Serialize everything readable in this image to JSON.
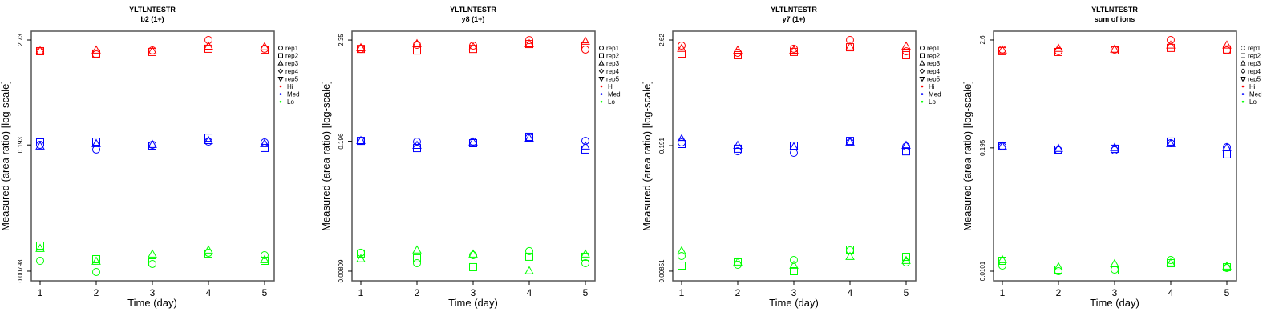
{
  "chart_data": [
    {
      "type": "scatter",
      "title": "YLTLNTESTR",
      "subtitle": "b2 (1+)",
      "xlabel": "Time (day)",
      "ylabel": "Measured (area ratio) [log-scale]",
      "yscale": "log",
      "x": [
        1,
        2,
        3,
        4,
        5
      ],
      "xticks": [
        "1",
        "2",
        "3",
        "4",
        "5"
      ],
      "yticks": [
        2.73,
        0.193,
        0.00798
      ],
      "ytick_labels": [
        "2.73",
        "0.193",
        "0.00798"
      ],
      "ylim": [
        0.00626,
        3.41
      ],
      "series": [
        {
          "group": "Hi",
          "rep": "rep1",
          "values": [
            2.06,
            1.9,
            2.1,
            2.73,
            2.19
          ]
        },
        {
          "group": "Hi",
          "rep": "rep2",
          "values": [
            2.06,
            1.94,
            2.02,
            2.19,
            2.14
          ]
        },
        {
          "group": "Hi",
          "rep": "rep3",
          "values": [
            2.06,
            2.1,
            2.06,
            2.32,
            2.28
          ]
        },
        {
          "group": "Med",
          "rep": "rep1",
          "values": [
            0.194,
            0.172,
            0.194,
            0.21,
            0.206
          ]
        },
        {
          "group": "Med",
          "rep": "rep2",
          "values": [
            0.206,
            0.21,
            0.19,
            0.232,
            0.179
          ]
        },
        {
          "group": "Med",
          "rep": "rep3",
          "values": [
            0.186,
            0.198,
            0.194,
            0.214,
            0.198
          ]
        },
        {
          "group": "Lo",
          "rep": "rep1",
          "values": [
            0.01037,
            0.00782,
            0.00957,
            0.0127,
            0.01195
          ]
        },
        {
          "group": "Lo",
          "rep": "rep2",
          "values": [
            0.01523,
            0.0108,
            0.00996,
            0.01245,
            0.01037
          ]
        },
        {
          "group": "Lo",
          "rep": "rep3",
          "values": [
            0.01405,
            0.01016,
            0.0122,
            0.0135,
            0.01058
          ]
        }
      ]
    },
    {
      "type": "scatter",
      "title": "YLTLNTESTR",
      "subtitle": "y8 (1+)",
      "xlabel": "Time (day)",
      "ylabel": "Measured (area ratio) [log-scale]",
      "yscale": "log",
      "x": [
        1,
        2,
        3,
        4,
        5
      ],
      "xticks": [
        "1",
        "2",
        "3",
        "4",
        "5"
      ],
      "yticks": [
        2.35,
        0.196,
        0.00809
      ],
      "ytick_labels": [
        "2.35",
        "0.196",
        "0.00809"
      ],
      "ylim": [
        0.00639,
        2.92
      ],
      "series": [
        {
          "group": "Hi",
          "rep": "rep1",
          "values": [
            1.89,
            2.09,
            2.05,
            2.35,
            1.86
          ]
        },
        {
          "group": "Hi",
          "rep": "rep2",
          "values": [
            1.89,
            1.82,
            1.89,
            2.13,
            2.01
          ]
        },
        {
          "group": "Hi",
          "rep": "rep3",
          "values": [
            1.93,
            2.13,
            1.97,
            2.13,
            2.26
          ]
        },
        {
          "group": "Med",
          "rep": "rep1",
          "values": [
            0.198,
            0.194,
            0.194,
            0.214,
            0.198
          ]
        },
        {
          "group": "Med",
          "rep": "rep2",
          "values": [
            0.198,
            0.166,
            0.187,
            0.219,
            0.16
          ]
        },
        {
          "group": "Med",
          "rep": "rep3",
          "values": [
            0.198,
            0.176,
            0.191,
            0.21,
            0.173
          ]
        },
        {
          "group": "Lo",
          "rep": "rep1",
          "values": [
            0.01272,
            0.00985,
            0.01198,
            0.01323,
            0.00985
          ]
        },
        {
          "group": "Lo",
          "rep": "rep2",
          "values": [
            0.01247,
            0.01109,
            0.00893,
            0.01153,
            0.01153
          ]
        },
        {
          "group": "Lo",
          "rep": "rep3",
          "values": [
            0.01087,
            0.0135,
            0.01222,
            0.0081,
            0.01222
          ]
        }
      ]
    },
    {
      "type": "scatter",
      "title": "YLTLNTESTR",
      "subtitle": "y7 (1+)",
      "xlabel": "Time (day)",
      "ylabel": "Measured (area ratio) [log-scale]",
      "yscale": "log",
      "x": [
        1,
        2,
        3,
        4,
        5
      ],
      "xticks": [
        "1",
        "2",
        "3",
        "4",
        "5"
      ],
      "yticks": [
        2.62,
        0.191,
        0.00851
      ],
      "ytick_labels": [
        "2.62",
        "0.191",
        "0.00851"
      ],
      "ylim": [
        0.0067,
        3.26
      ],
      "series": [
        {
          "group": "Hi",
          "rep": "rep1",
          "values": [
            2.28,
            1.91,
            2.11,
            2.62,
            1.98
          ]
        },
        {
          "group": "Hi",
          "rep": "rep2",
          "values": [
            1.87,
            1.8,
            1.95,
            2.19,
            1.8
          ]
        },
        {
          "group": "Hi",
          "rep": "rep3",
          "values": [
            2.11,
            2.02,
            2.02,
            2.19,
            2.23
          ]
        },
        {
          "group": "Med",
          "rep": "rep1",
          "values": [
            0.207,
            0.166,
            0.16,
            0.207,
            0.187
          ]
        },
        {
          "group": "Med",
          "rep": "rep2",
          "values": [
            0.199,
            0.177,
            0.191,
            0.215,
            0.166
          ]
        },
        {
          "group": "Med",
          "rep": "rep3",
          "values": [
            0.224,
            0.191,
            0.184,
            0.207,
            0.191
          ]
        },
        {
          "group": "Lo",
          "rep": "rep1",
          "values": [
            0.01239,
            0.00996,
            0.01122,
            0.01424,
            0.01057
          ]
        },
        {
          "group": "Lo",
          "rep": "rep2",
          "values": [
            0.00976,
            0.01057,
            0.0085,
            0.01452,
            0.01214
          ]
        },
        {
          "group": "Lo",
          "rep": "rep3",
          "values": [
            0.01395,
            0.01057,
            0.00976,
            0.01214,
            0.011
          ]
        }
      ]
    },
    {
      "type": "scatter",
      "title": "YLTLNTESTR",
      "subtitle": "sum of ions",
      "xlabel": "Time (day)",
      "ylabel": "Measured (area ratio) [log-scale]",
      "yscale": "log",
      "x": [
        1,
        2,
        3,
        4,
        5
      ],
      "xticks": [
        "1",
        "2",
        "3",
        "4",
        "5"
      ],
      "yticks": [
        2.6,
        0.195,
        0.0101
      ],
      "ytick_labels": [
        "2.6",
        "0.195",
        "0.0101"
      ],
      "ylim": [
        0.00802,
        3.21
      ],
      "series": [
        {
          "group": "Hi",
          "rep": "rep1",
          "values": [
            2.07,
            1.99,
            2.07,
            2.6,
            2.03
          ]
        },
        {
          "group": "Hi",
          "rep": "rep2",
          "values": [
            1.99,
            1.95,
            2.03,
            2.15,
            2.07
          ]
        },
        {
          "group": "Hi",
          "rep": "rep3",
          "values": [
            2.03,
            2.11,
            2.07,
            2.28,
            2.28
          ]
        },
        {
          "group": "Med",
          "rep": "rep1",
          "values": [
            0.202,
            0.184,
            0.184,
            0.218,
            0.198
          ]
        },
        {
          "group": "Med",
          "rep": "rep2",
          "values": [
            0.202,
            0.187,
            0.191,
            0.227,
            0.167
          ]
        },
        {
          "group": "Med",
          "rep": "rep3",
          "values": [
            0.202,
            0.191,
            0.195,
            0.214,
            0.195
          ]
        },
        {
          "group": "Lo",
          "rep": "rep1",
          "values": [
            0.01155,
            0.01009,
            0.01049,
            0.0132,
            0.0109
          ]
        },
        {
          "group": "Lo",
          "rep": "rep2",
          "values": [
            0.01296,
            0.01049,
            0.01029,
            0.01223,
            0.01111
          ]
        },
        {
          "group": "Lo",
          "rep": "rep3",
          "values": [
            0.0132,
            0.01111,
            0.012,
            0.01223,
            0.01133
          ]
        }
      ]
    }
  ],
  "legend": {
    "placement": "right",
    "shapes": [
      {
        "label": "rep1",
        "shape": "circle"
      },
      {
        "label": "rep2",
        "shape": "square"
      },
      {
        "label": "rep3",
        "shape": "triangle"
      },
      {
        "label": "rep4",
        "shape": "diamond"
      },
      {
        "label": "rep5",
        "shape": "triangle-down"
      }
    ],
    "groups": [
      {
        "label": "Hi",
        "color": "#ff0000"
      },
      {
        "label": "Med",
        "color": "#0000ff"
      },
      {
        "label": "Lo",
        "color": "#00ff00"
      }
    ]
  }
}
